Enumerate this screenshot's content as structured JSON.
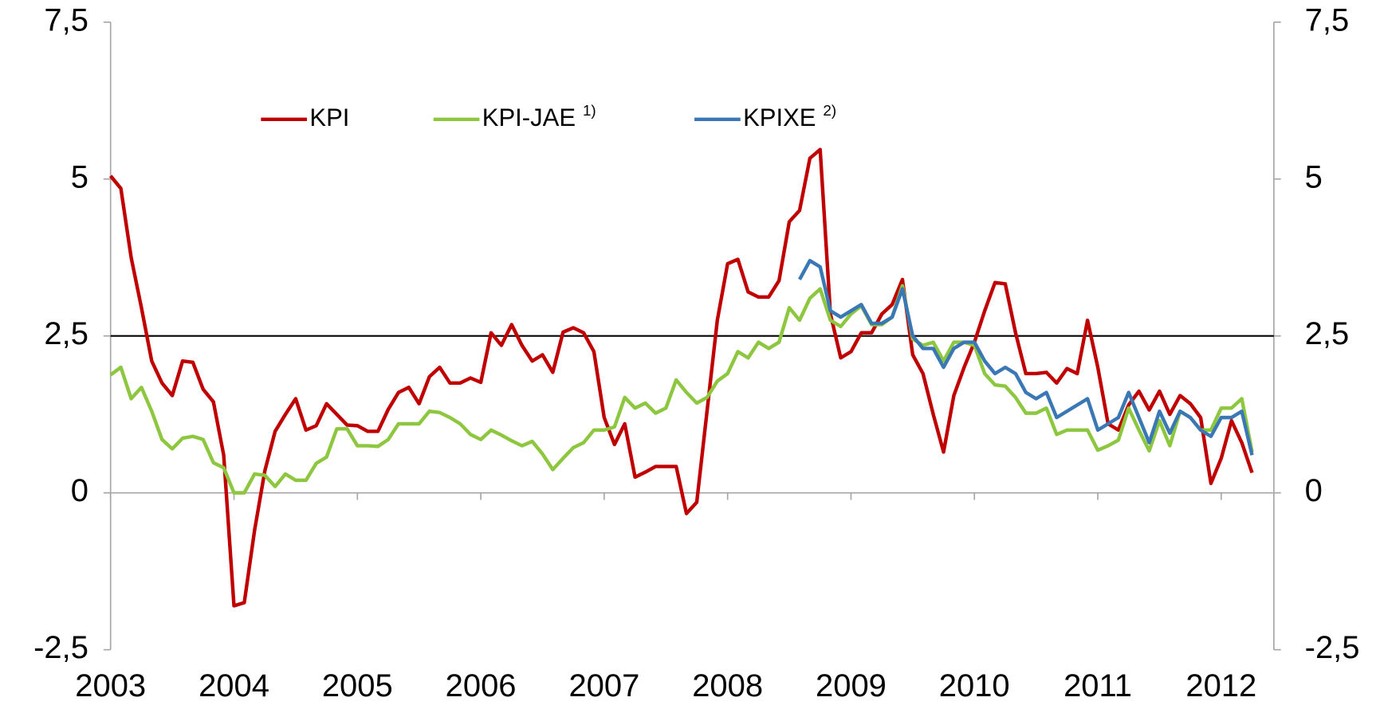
{
  "chart_data": {
    "type": "line",
    "categories": [
      "2003",
      null,
      null,
      null,
      null,
      null,
      null,
      null,
      null,
      null,
      null,
      null,
      "2004",
      null,
      null,
      null,
      null,
      null,
      null,
      null,
      null,
      null,
      null,
      null,
      "2005",
      null,
      null,
      null,
      null,
      null,
      null,
      null,
      null,
      null,
      null,
      null,
      "2006",
      null,
      null,
      null,
      null,
      null,
      null,
      null,
      null,
      null,
      null,
      null,
      "2007",
      null,
      null,
      null,
      null,
      null,
      null,
      null,
      null,
      null,
      null,
      null,
      "2008",
      null,
      null,
      null,
      null,
      null,
      null,
      null,
      null,
      null,
      null,
      null,
      "2009",
      null,
      null,
      null,
      null,
      null,
      null,
      null,
      null,
      null,
      null,
      null,
      "2010",
      null,
      null,
      null,
      null,
      null,
      null,
      null,
      null,
      null,
      null,
      null,
      "2011",
      null,
      null,
      null,
      null,
      null,
      null,
      null,
      null,
      null,
      null,
      null,
      "2012",
      null,
      null,
      null
    ],
    "series": [
      {
        "name": "KPI",
        "color": "#c00000",
        "values": [
          5.05,
          4.85,
          3.75,
          2.95,
          2.1,
          1.75,
          1.55,
          2.1,
          2.08,
          1.65,
          1.45,
          0.6,
          -1.8,
          -1.75,
          -0.6,
          0.35,
          0.98,
          1.25,
          1.5,
          1.0,
          1.07,
          1.42,
          1.25,
          1.08,
          1.07,
          0.98,
          0.98,
          1.33,
          1.6,
          1.68,
          1.42,
          1.85,
          2.0,
          1.75,
          1.75,
          1.83,
          1.76,
          2.55,
          2.35,
          2.68,
          2.35,
          2.1,
          2.2,
          1.92,
          2.56,
          2.63,
          2.55,
          2.25,
          1.2,
          0.77,
          1.1,
          0.25,
          0.33,
          0.42,
          0.42,
          0.42,
          -0.33,
          -0.15,
          1.3,
          2.75,
          3.65,
          3.72,
          3.2,
          3.12,
          3.12,
          3.38,
          4.32,
          4.5,
          5.33,
          5.47,
          2.85,
          2.15,
          2.25,
          2.55,
          2.55,
          2.85,
          3.0,
          3.4,
          2.2,
          1.9,
          1.25,
          0.65,
          1.55,
          2.0,
          2.4,
          2.9,
          3.35,
          3.33,
          2.55,
          1.9,
          1.9,
          1.92,
          1.75,
          1.98,
          1.9,
          2.75,
          2.0,
          1.1,
          1.0,
          1.4,
          1.62,
          1.32,
          1.62,
          1.25,
          1.55,
          1.42,
          1.2,
          0.15,
          0.55,
          1.15,
          0.8,
          0.32
        ]
      },
      {
        "name": "KPI-JAE",
        "footnote": "1)",
        "color": "#8dc63f",
        "values": [
          1.88,
          2.0,
          1.5,
          1.68,
          1.3,
          0.85,
          0.7,
          0.87,
          0.9,
          0.85,
          0.48,
          0.4,
          0.0,
          0.0,
          0.3,
          0.28,
          0.1,
          0.3,
          0.2,
          0.2,
          0.47,
          0.57,
          1.02,
          1.02,
          0.75,
          0.75,
          0.74,
          0.85,
          1.1,
          1.1,
          1.1,
          1.3,
          1.28,
          1.2,
          1.1,
          0.93,
          0.85,
          1.0,
          0.92,
          0.83,
          0.75,
          0.82,
          0.62,
          0.37,
          0.55,
          0.72,
          0.8,
          1.0,
          1.0,
          1.05,
          1.52,
          1.35,
          1.43,
          1.27,
          1.35,
          1.8,
          1.6,
          1.43,
          1.52,
          1.78,
          1.9,
          2.25,
          2.15,
          2.4,
          2.3,
          2.4,
          2.95,
          2.75,
          3.1,
          3.25,
          2.75,
          2.65,
          2.85,
          2.98,
          2.68,
          2.68,
          2.8,
          3.3,
          2.45,
          2.35,
          2.4,
          2.1,
          2.4,
          2.4,
          2.35,
          1.9,
          1.72,
          1.7,
          1.52,
          1.27,
          1.27,
          1.35,
          0.93,
          1.0,
          1.0,
          1.0,
          0.68,
          0.75,
          0.84,
          1.35,
          1.0,
          0.67,
          1.15,
          0.75,
          1.3,
          1.2,
          1.0,
          1.0,
          1.35,
          1.35,
          1.5,
          0.65
        ]
      },
      {
        "name": "KPIXE",
        "footnote": "2)",
        "color": "#3a78b5",
        "values": [
          null,
          null,
          null,
          null,
          null,
          null,
          null,
          null,
          null,
          null,
          null,
          null,
          null,
          null,
          null,
          null,
          null,
          null,
          null,
          null,
          null,
          null,
          null,
          null,
          null,
          null,
          null,
          null,
          null,
          null,
          null,
          null,
          null,
          null,
          null,
          null,
          null,
          null,
          null,
          null,
          null,
          null,
          null,
          null,
          null,
          null,
          null,
          null,
          null,
          null,
          null,
          null,
          null,
          null,
          null,
          null,
          null,
          null,
          null,
          null,
          null,
          null,
          null,
          null,
          null,
          null,
          null,
          3.4,
          3.7,
          3.6,
          2.9,
          2.8,
          2.9,
          3.0,
          2.7,
          2.7,
          2.8,
          3.25,
          2.5,
          2.3,
          2.3,
          2.0,
          2.3,
          2.4,
          2.4,
          2.1,
          1.9,
          2.0,
          1.9,
          1.6,
          1.5,
          1.6,
          1.2,
          1.3,
          1.4,
          1.5,
          1.0,
          1.1,
          1.2,
          1.6,
          1.2,
          0.8,
          1.3,
          0.95,
          1.3,
          1.2,
          1.0,
          0.9,
          1.2,
          1.2,
          1.3,
          0.6
        ]
      }
    ],
    "ylim": [
      -2.5,
      7.5
    ],
    "yticks": [
      {
        "value": -2.5,
        "label": "-2,5"
      },
      0,
      {
        "value": 2.5,
        "label": "2,5"
      },
      5,
      {
        "value": 7.5,
        "label": "7,5"
      }
    ],
    "y2lim": [
      -2.5,
      7.5
    ],
    "y2ticks": [
      {
        "value": -2.5,
        "label": "-2,5"
      },
      0,
      {
        "value": 2.5,
        "label": "2,5"
      },
      5,
      {
        "value": 7.5,
        "label": "7,5"
      }
    ],
    "reference_lines": [
      {
        "value": 0,
        "color": "#a6a6a6"
      },
      {
        "value": 2.5,
        "color": "#000000"
      }
    ],
    "legend": "top-left"
  }
}
